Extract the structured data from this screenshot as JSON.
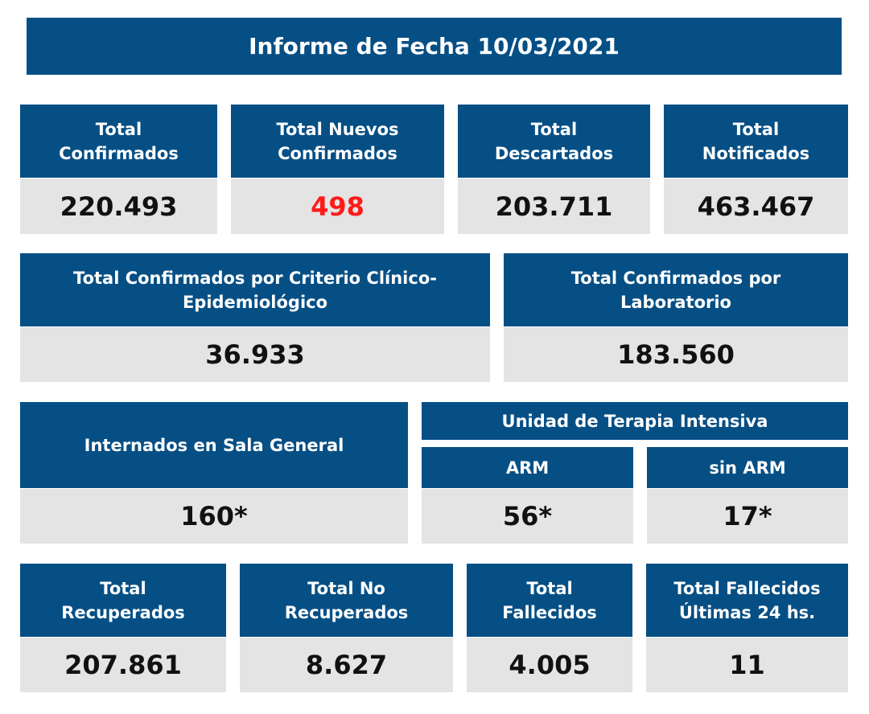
{
  "report": {
    "title": "Informe de Fecha 10/03/2021"
  },
  "row1": [
    {
      "label": "Total\nConfirmados",
      "value": "220.493"
    },
    {
      "label": "Total Nuevos\nConfirmados",
      "value": "498",
      "value_color": "#ff1a1a"
    },
    {
      "label": "Total\nDescartados",
      "value": "203.711"
    },
    {
      "label": "Total\nNotificados",
      "value": "463.467"
    }
  ],
  "row2": [
    {
      "label": "Total Confirmados por Criterio Clínico-\nEpidemiológico",
      "value": "36.933"
    },
    {
      "label": "Total Confirmados por\nLaboratorio",
      "value": "183.560"
    }
  ],
  "row3": {
    "sala_general": {
      "label": "Internados en Sala General",
      "value": "160*"
    },
    "uti": {
      "label": "Unidad de Terapia Intensiva",
      "arm": {
        "label": "ARM",
        "value": "56*"
      },
      "sin_arm": {
        "label": "sin ARM",
        "value": "17*"
      }
    }
  },
  "row4": [
    {
      "label": "Total\nRecuperados",
      "value": "207.861"
    },
    {
      "label": "Total No\nRecuperados",
      "value": "8.627"
    },
    {
      "label": "Total\nFallecidos",
      "value": "4.005"
    },
    {
      "label": "Total Fallecidos\nÚltimas 24 hs.",
      "value": "11"
    }
  ],
  "colors": {
    "header_blue": "#064f85",
    "value_bg": "#e4e4e4",
    "highlight_red": "#ff1a1a"
  }
}
